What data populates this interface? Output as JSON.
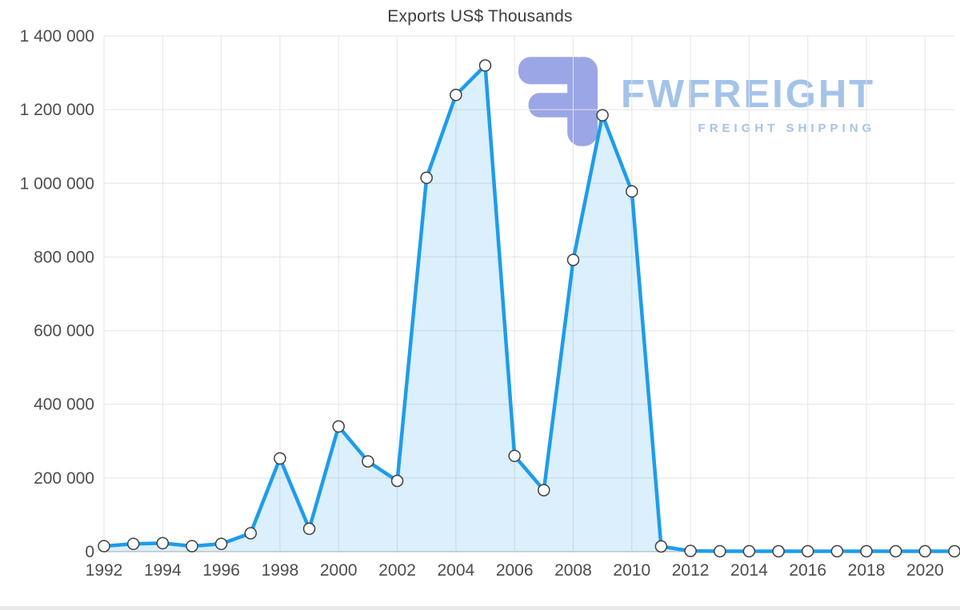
{
  "watermark": {
    "brand": "FWFREIGHT",
    "tagline": "FREIGHT SHIPPING",
    "brand_color": "#a4c3e9",
    "glyph_color": "#9aa6e6"
  },
  "chart_data": {
    "type": "area",
    "title": "Exports US$ Thousands",
    "xlabel": "",
    "ylabel": "",
    "x": [
      1992,
      1993,
      1994,
      1995,
      1996,
      1997,
      1998,
      1999,
      2000,
      2001,
      2002,
      2003,
      2004,
      2005,
      2006,
      2007,
      2008,
      2009,
      2010,
      2011,
      2012,
      2013,
      2014,
      2015,
      2016,
      2017,
      2018,
      2019,
      2020,
      2021
    ],
    "values": [
      15000,
      21000,
      23000,
      15000,
      21000,
      50000,
      253000,
      62000,
      340000,
      245000,
      192000,
      1015000,
      1240000,
      1320000,
      260000,
      167000,
      792000,
      1185000,
      978000,
      14000,
      2000,
      1000,
      1000,
      1000,
      1000,
      1000,
      1000,
      1000,
      1000,
      1000
    ],
    "ylim": [
      0,
      1400000
    ],
    "yticks": [
      0,
      200000,
      400000,
      600000,
      800000,
      1000000,
      1200000,
      1400000
    ],
    "ytick_labels": [
      "0",
      "200 000",
      "400 000",
      "600 000",
      "800 000",
      "1 000 000",
      "1 200 000",
      "1 400 000"
    ],
    "xticks": [
      1992,
      1994,
      1996,
      1998,
      2000,
      2002,
      2004,
      2006,
      2008,
      2010,
      2012,
      2014,
      2016,
      2018,
      2020
    ],
    "grid": true,
    "legend": "none",
    "colors": {
      "line": "#1e9ceb",
      "fill": "rgba(30,156,235,0.16)",
      "marker_fill": "#ffffff",
      "marker_stroke": "#3f3f3f",
      "grid": "#e4e4e4",
      "axis_line": "#c8c8c8",
      "axis_text": "#4d4d4d"
    }
  }
}
